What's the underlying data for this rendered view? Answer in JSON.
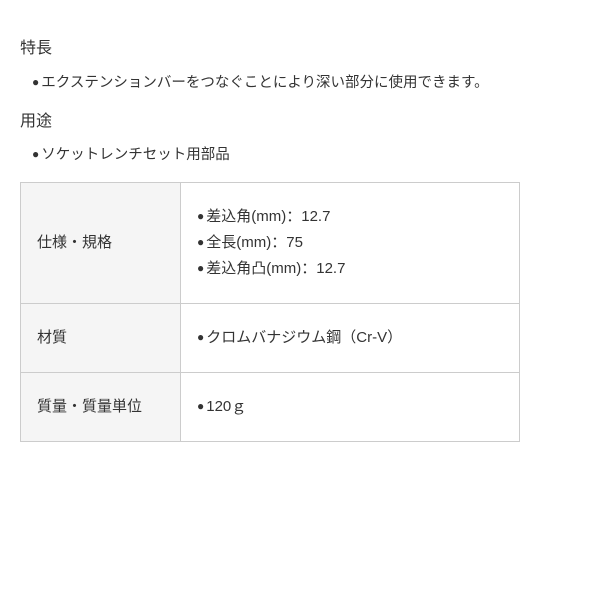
{
  "features": {
    "heading": "特長",
    "items": [
      "エクステンションバーをつなぐことにより深い部分に使用できます。"
    ]
  },
  "usage": {
    "heading": "用途",
    "items": [
      "ソケットレンチセット用部品"
    ]
  },
  "specs_table": {
    "type": "table",
    "border_color": "#cccccc",
    "label_bg": "#f5f5f5",
    "value_bg": "#ffffff",
    "text_color": "#333333",
    "label_fontsize": 15,
    "value_fontsize": 15,
    "label_col_width": 160,
    "rows": [
      {
        "label": "仕様・規格",
        "values": [
          "差込角(mm)：12.7",
          "全長(mm)：75",
          "差込角凸(mm)：12.7"
        ]
      },
      {
        "label": "材質",
        "values": [
          "クロムバナジウム鋼（Cr-V）"
        ]
      },
      {
        "label": "質量・質量単位",
        "values": [
          "120ｇ"
        ]
      }
    ]
  },
  "background_color": "#ffffff"
}
